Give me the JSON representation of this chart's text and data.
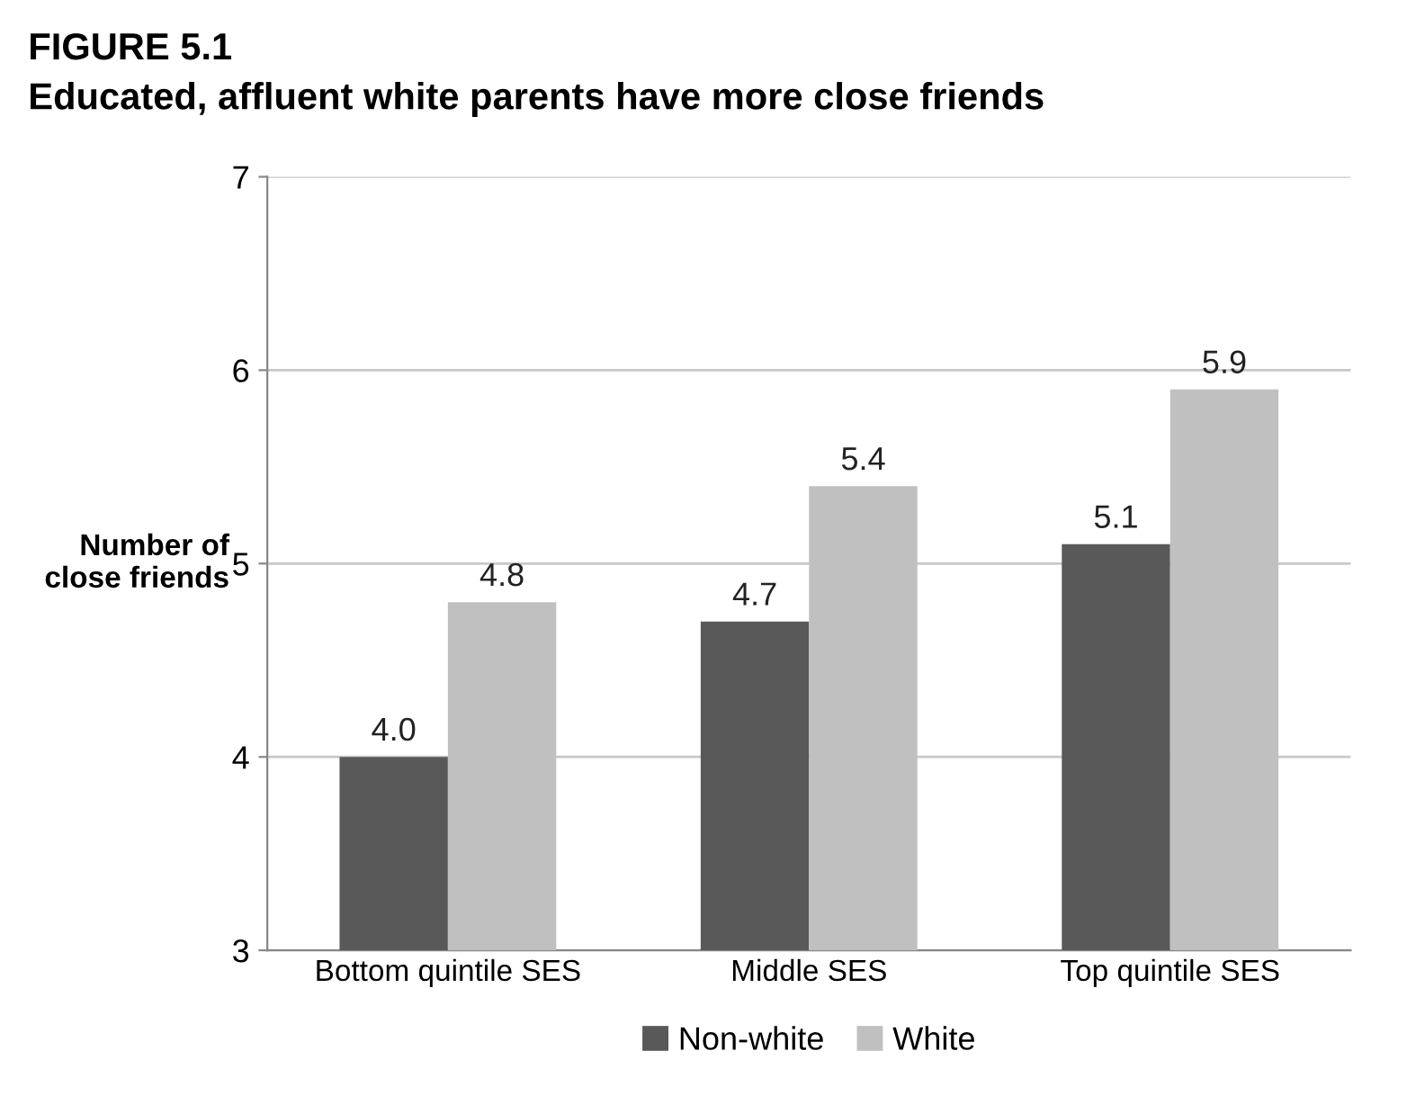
{
  "chart_data": {
    "type": "bar",
    "title": "FIGURE 5.1",
    "subtitle": "Educated, affluent white parents have more close friends",
    "ylabel": "Number of close friends",
    "categories": [
      "Bottom quintile SES",
      "Middle SES",
      "Top quintile SES"
    ],
    "series": [
      {
        "name": "Non-white",
        "color": "#595959",
        "values": [
          4.0,
          4.7,
          5.1
        ],
        "value_labels": [
          "4.0",
          "4.7",
          "5.1"
        ]
      },
      {
        "name": "White",
        "color": "#c0c0c0",
        "values": [
          4.8,
          5.4,
          5.9
        ],
        "value_labels": [
          "4.8",
          "5.4",
          "5.9"
        ]
      }
    ],
    "ylim": [
      3,
      7
    ],
    "yticks": [
      3,
      4,
      5,
      6,
      7
    ],
    "grid": "y",
    "legend": "bottom"
  }
}
